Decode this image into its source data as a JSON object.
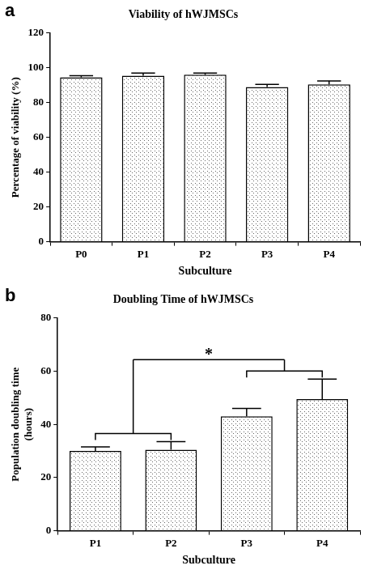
{
  "chart_data": [
    {
      "panel": "a",
      "type": "bar",
      "title": "Viability of hWJMSCs",
      "x_label": "Subculture",
      "y_label": "Percentage of viability (%)",
      "categories": [
        "P0",
        "P1",
        "P2",
        "P3",
        "P4"
      ],
      "values": [
        94.5,
        95.5,
        96,
        89,
        90.5
      ],
      "error": [
        1,
        1.5,
        1,
        1.5,
        2
      ],
      "color": "#ffffff",
      "ylim": [
        0,
        120
      ],
      "yticks": [
        0,
        20,
        40,
        60,
        80,
        100,
        120
      ],
      "grid": false
    },
    {
      "panel": "b",
      "type": "bar",
      "title": "Doubling Time of hWJMSCs",
      "x_label": "Subculture",
      "y_label": [
        "Population doubling time",
        "(hours)"
      ],
      "categories": [
        "P1",
        "P2",
        "P3",
        "P4"
      ],
      "values": [
        30,
        30.5,
        43,
        49.5
      ],
      "error": [
        1.5,
        3,
        3,
        7.5
      ],
      "color": "#ffffff",
      "ylim": [
        0,
        80
      ],
      "yticks": [
        0,
        20,
        40,
        60,
        80
      ],
      "grid": false,
      "annotation": {
        "text": "*",
        "groups": [
          [
            "P1",
            "P2"
          ],
          [
            "P3",
            "P4"
          ]
        ]
      }
    }
  ]
}
